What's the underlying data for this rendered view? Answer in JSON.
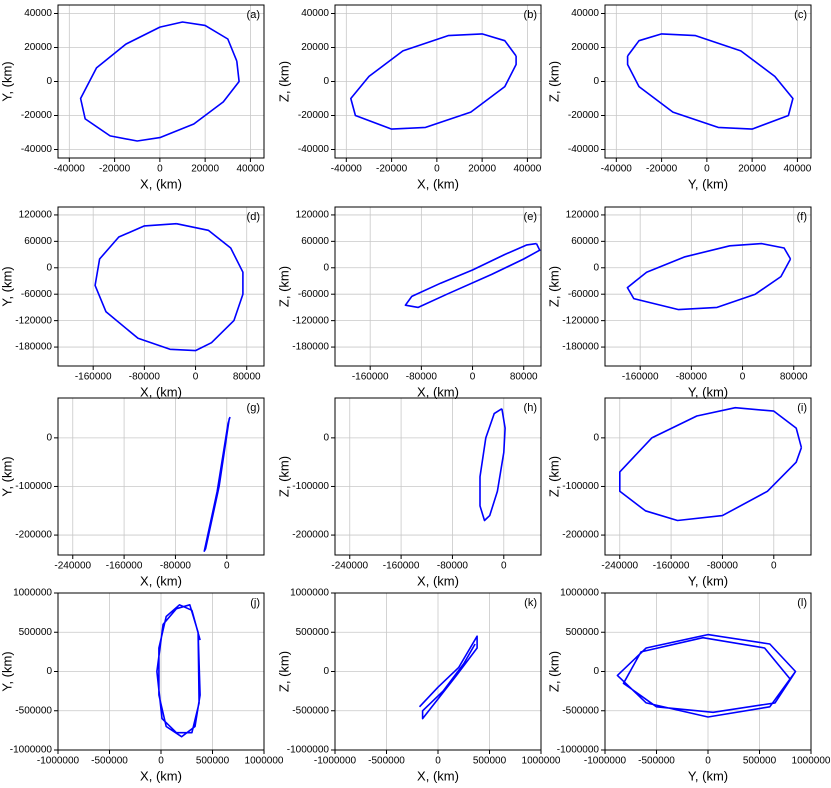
{
  "chart_data": [
    {
      "type": "line",
      "label": "(a)",
      "xlabel": "X, (km)",
      "ylabel": "Y, (km)",
      "color": "#0000ff",
      "grid": true,
      "xlim": [
        -45000,
        46000
      ],
      "ylim": [
        -45000,
        45000
      ],
      "xticks": [
        -40000,
        -20000,
        0,
        20000,
        40000
      ],
      "yticks": [
        -40000,
        -20000,
        0,
        20000,
        40000
      ],
      "x": [
        34000,
        30000,
        20000,
        10000,
        0,
        -15000,
        -28000,
        -35000,
        -33000,
        -22000,
        -10000,
        0,
        15000,
        28000,
        35000,
        34000
      ],
      "y": [
        12000,
        25000,
        33000,
        35000,
        32000,
        22000,
        8000,
        -10000,
        -22000,
        -32000,
        -35000,
        -33000,
        -25000,
        -12000,
        0,
        12000
      ]
    },
    {
      "type": "line",
      "label": "(b)",
      "xlabel": "X, (km)",
      "ylabel": "Z, (km)",
      "color": "#0000ff",
      "grid": true,
      "xlim": [
        -45000,
        46000
      ],
      "ylim": [
        -45000,
        45000
      ],
      "xticks": [
        -40000,
        -20000,
        0,
        20000,
        40000
      ],
      "yticks": [
        -40000,
        -20000,
        0,
        20000,
        40000
      ],
      "x": [
        35000,
        30000,
        20000,
        5000,
        -15000,
        -30000,
        -38000,
        -36000,
        -20000,
        -5000,
        15000,
        30000,
        35000,
        35000
      ],
      "y": [
        15000,
        24000,
        28000,
        27000,
        18000,
        3000,
        -10000,
        -20000,
        -28000,
        -27000,
        -18000,
        -3000,
        10000,
        15000
      ]
    },
    {
      "type": "line",
      "label": "(c)",
      "xlabel": "Y, (km)",
      "ylabel": "Z, (km)",
      "color": "#0000ff",
      "grid": true,
      "xlim": [
        -45000,
        46000
      ],
      "ylim": [
        -45000,
        45000
      ],
      "xticks": [
        -40000,
        -20000,
        0,
        20000,
        40000
      ],
      "yticks": [
        -40000,
        -20000,
        0,
        20000,
        40000
      ],
      "x": [
        -35000,
        -30000,
        -20000,
        -5000,
        15000,
        30000,
        38000,
        36000,
        20000,
        5000,
        -15000,
        -30000,
        -35000,
        -35000
      ],
      "y": [
        15000,
        24000,
        28000,
        27000,
        18000,
        3000,
        -10000,
        -20000,
        -28000,
        -27000,
        -18000,
        -3000,
        10000,
        15000
      ]
    },
    {
      "type": "line",
      "label": "(d)",
      "xlabel": "X, (km)",
      "ylabel": "Y, (km)",
      "color": "#0000ff",
      "grid": true,
      "xlim": [
        -215000,
        107000
      ],
      "ylim": [
        -223000,
        138000
      ],
      "xticks": [
        -160000,
        -80000,
        0,
        80000
      ],
      "yticks": [
        -180000,
        -120000,
        -60000,
        0,
        60000,
        120000
      ],
      "x": [
        -30000,
        20000,
        55000,
        74000,
        74000,
        60000,
        25000,
        0,
        -40000,
        -90000,
        -140000,
        -157000,
        -150000,
        -120000,
        -80000,
        -30000
      ],
      "y": [
        100000,
        85000,
        45000,
        -10000,
        -60000,
        -120000,
        -170000,
        -188000,
        -185000,
        -160000,
        -100000,
        -40000,
        20000,
        70000,
        95000,
        100000
      ]
    },
    {
      "type": "line",
      "label": "(e)",
      "xlabel": "X, (km)",
      "ylabel": "Z, (km)",
      "color": "#0000ff",
      "grid": true,
      "xlim": [
        -215000,
        107000
      ],
      "ylim": [
        -223000,
        138000
      ],
      "xticks": [
        -160000,
        -80000,
        0,
        80000
      ],
      "yticks": [
        -180000,
        -120000,
        -60000,
        0,
        60000,
        120000
      ],
      "x": [
        100000,
        105000,
        80000,
        30000,
        -40000,
        -85000,
        -105000,
        -95000,
        -50000,
        0,
        50000,
        85000,
        100000
      ],
      "y": [
        55000,
        40000,
        20000,
        -15000,
        -60000,
        -90000,
        -85000,
        -65000,
        -35000,
        -5000,
        30000,
        52000,
        55000
      ]
    },
    {
      "type": "line",
      "label": "(f)",
      "xlabel": "Y, (km)",
      "ylabel": "Z, (km)",
      "color": "#0000ff",
      "grid": true,
      "xlim": [
        -215000,
        107000
      ],
      "ylim": [
        -223000,
        138000
      ],
      "xticks": [
        -160000,
        -80000,
        0,
        80000
      ],
      "yticks": [
        -180000,
        -120000,
        -60000,
        0,
        60000,
        120000
      ],
      "x": [
        75000,
        65000,
        30000,
        -20000,
        -90000,
        -150000,
        -180000,
        -170000,
        -100000,
        -40000,
        20000,
        60000,
        75000
      ],
      "y": [
        20000,
        45000,
        55000,
        50000,
        25000,
        -10000,
        -45000,
        -70000,
        -95000,
        -90000,
        -60000,
        -20000,
        20000
      ]
    },
    {
      "type": "line",
      "label": "(g)",
      "xlabel": "X, (km)",
      "ylabel": "Y, (km)",
      "color": "#0000ff",
      "grid": true,
      "xlim": [
        -263000,
        58000
      ],
      "ylim": [
        -241000,
        82000
      ],
      "xticks": [
        -240000,
        -160000,
        -80000,
        0
      ],
      "yticks": [
        -200000,
        -100000,
        0
      ],
      "x": [
        5000,
        2000,
        -15000,
        -35000,
        -33000,
        -12000,
        4000
      ],
      "y": [
        43000,
        30000,
        -110000,
        -233000,
        -228000,
        -100000,
        40000
      ]
    },
    {
      "type": "line",
      "label": "(h)",
      "xlabel": "X, (km)",
      "ylabel": "Z, (km)",
      "color": "#0000ff",
      "grid": true,
      "xlim": [
        -263000,
        58000
      ],
      "ylim": [
        -241000,
        82000
      ],
      "xticks": [
        -240000,
        -160000,
        -80000,
        0
      ],
      "yticks": [
        -200000,
        -100000,
        0
      ],
      "x": [
        -3000,
        2000,
        0,
        -10000,
        -22000,
        -30000,
        -37000,
        -37000,
        -28000,
        -15000,
        -3000
      ],
      "y": [
        60000,
        20000,
        -30000,
        -110000,
        -160000,
        -170000,
        -140000,
        -80000,
        0,
        50000,
        60000
      ]
    },
    {
      "type": "line",
      "label": "(i)",
      "xlabel": "Y, (km)",
      "ylabel": "Z, (km)",
      "color": "#0000ff",
      "grid": true,
      "xlim": [
        -263000,
        58000
      ],
      "ylim": [
        -241000,
        82000
      ],
      "xticks": [
        -240000,
        -160000,
        -80000,
        0
      ],
      "yticks": [
        -200000,
        -100000,
        0
      ],
      "x": [
        43000,
        35000,
        0,
        -60000,
        -120000,
        -190000,
        -240000,
        -240000,
        -200000,
        -150000,
        -80000,
        -10000,
        35000,
        43000
      ],
      "y": [
        -20000,
        20000,
        55000,
        62000,
        45000,
        0,
        -70000,
        -110000,
        -150000,
        -170000,
        -160000,
        -110000,
        -50000,
        -20000
      ]
    },
    {
      "type": "line",
      "label": "(j)",
      "xlabel": "X, (km)",
      "ylabel": "Y, (km)",
      "color": "#0000ff",
      "grid": true,
      "xlim": [
        -1000000,
        1000000
      ],
      "ylim": [
        -1000000,
        1000000
      ],
      "xticks": [
        -1000000,
        -500000,
        0,
        500000,
        1000000
      ],
      "yticks": [
        -1000000,
        -500000,
        0,
        500000,
        1000000
      ],
      "x": [
        380000,
        300000,
        180000,
        50000,
        -20000,
        -20000,
        50000,
        200000,
        330000,
        380000,
        360000,
        280000,
        150000,
        20000,
        -40000,
        10000,
        150000,
        300000,
        370000,
        360000
      ],
      "y": [
        400000,
        780000,
        850000,
        700000,
        300000,
        -300000,
        -700000,
        -830000,
        -700000,
        -300000,
        500000,
        850000,
        800000,
        600000,
        0,
        -600000,
        -780000,
        -780000,
        -400000,
        500000
      ]
    },
    {
      "type": "line",
      "label": "(k)",
      "xlabel": "X, (km)",
      "ylabel": "Z, (km)",
      "color": "#0000ff",
      "grid": true,
      "xlim": [
        -1000000,
        1000000
      ],
      "ylim": [
        -1000000,
        1000000
      ],
      "xticks": [
        -1000000,
        -500000,
        0,
        500000,
        1000000
      ],
      "yticks": [
        -1000000,
        -500000,
        0,
        500000,
        1000000
      ],
      "x": [
        -180000,
        0,
        200000,
        380000,
        380000,
        180000,
        0,
        -150000,
        -150000,
        50000,
        250000,
        360000
      ],
      "y": [
        -450000,
        -200000,
        50000,
        450000,
        300000,
        -50000,
        -350000,
        -600000,
        -500000,
        -250000,
        100000,
        350000
      ]
    },
    {
      "type": "line",
      "label": "(l)",
      "xlabel": "Y, (km)",
      "ylabel": "Z, (km)",
      "color": "#0000ff",
      "grid": true,
      "xlim": [
        -1000000,
        1000000
      ],
      "ylim": [
        -1000000,
        1000000
      ],
      "xticks": [
        -1000000,
        -500000,
        0,
        500000,
        1000000
      ],
      "yticks": [
        -1000000,
        -500000,
        0,
        500000,
        1000000
      ],
      "x": [
        850000,
        600000,
        0,
        -600000,
        -880000,
        -600000,
        0,
        600000,
        850000,
        800000,
        550000,
        -50000,
        -650000,
        -820000,
        -500000,
        50000,
        650000,
        800000
      ],
      "y": [
        0,
        350000,
        470000,
        300000,
        -50000,
        -400000,
        -580000,
        -450000,
        0,
        -100000,
        300000,
        430000,
        250000,
        -150000,
        -450000,
        -520000,
        -400000,
        -100000
      ]
    }
  ]
}
